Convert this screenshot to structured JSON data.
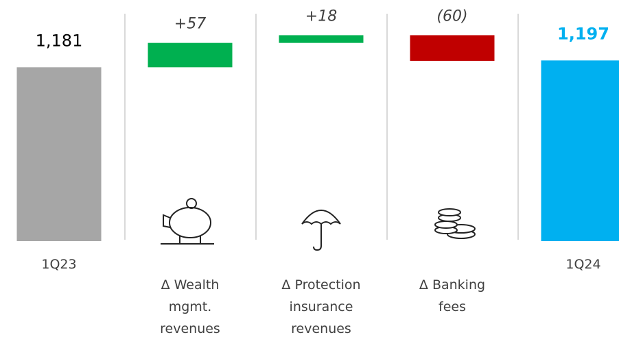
{
  "chart_data": {
    "type": "waterfall",
    "categories": [
      "1Q23",
      "Δ Wealth mgmt. revenues",
      "Δ Protection insurance revenues",
      "Δ Banking fees",
      "1Q24"
    ],
    "values": [
      1181,
      57,
      18,
      -60,
      1197
    ],
    "value_labels": [
      "1,181",
      "+57",
      "+18",
      "(60)",
      "1,197"
    ],
    "measure": [
      "total",
      "relative",
      "relative",
      "relative",
      "total"
    ],
    "colors": [
      "#a6a6a6",
      "#00b050",
      "#00b050",
      "#c00000",
      "#00b0f0"
    ],
    "ylim": [
      775,
      1200
    ]
  }
}
